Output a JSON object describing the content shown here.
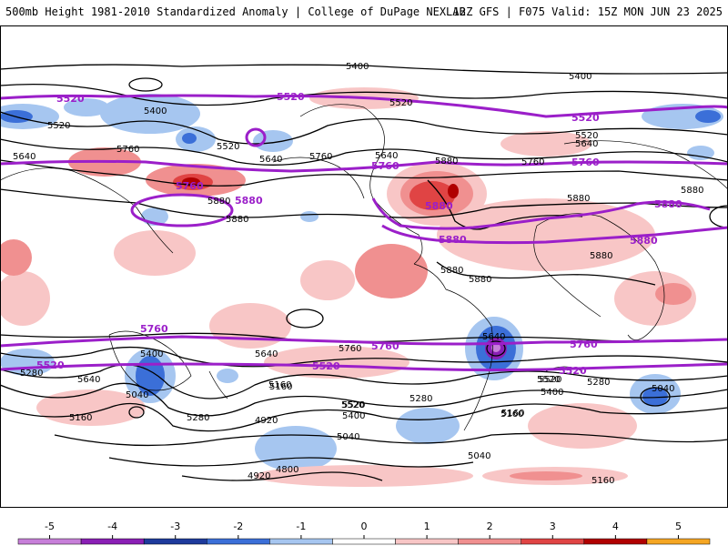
{
  "header": {
    "title": "500mb Height 1981-2010 Standardized Anomaly | College of DuPage NEXLAB",
    "run_info": "12Z GFS | F075 Valid: 15Z MON JUN 23 2025"
  },
  "colorbar": {
    "ticks": [
      "-5",
      "-4",
      "-3",
      "-2",
      "-1",
      "0",
      "1",
      "2",
      "3",
      "4",
      "5"
    ],
    "colors": [
      "#c77fd9",
      "#8a1fb5",
      "#1e3a9c",
      "#3b6fd8",
      "#a6c6f0",
      "#ffffff",
      "#f8c6c6",
      "#f09090",
      "#e04444",
      "#b00000",
      "#f5a623"
    ]
  },
  "contour_labels": {
    "black": [
      "5400",
      "5400",
      "5400",
      "5520",
      "5520",
      "5520",
      "5520",
      "5640",
      "5640",
      "5640",
      "5640",
      "5760",
      "5760",
      "5760",
      "5880",
      "5880",
      "5880",
      "5880",
      "5880",
      "5880",
      "5880",
      "5880",
      "5640",
      "5760",
      "5640",
      "5400",
      "5520",
      "5520",
      "5640",
      "5280",
      "5280",
      "5160",
      "5160",
      "5160",
      "5040",
      "5040",
      "5040",
      "5040",
      "5280",
      "5520",
      "5400",
      "4920",
      "4920",
      "4800",
      "5160",
      "5400",
      "5520",
      "5280",
      "5160",
      "5160"
    ],
    "purple": [
      "5520",
      "5520",
      "5520",
      "5760",
      "5760",
      "5760",
      "5880",
      "5880",
      "5880",
      "5880",
      "5880",
      "5760",
      "5760",
      "5760",
      "5520",
      "5520",
      "5520"
    ]
  }
}
